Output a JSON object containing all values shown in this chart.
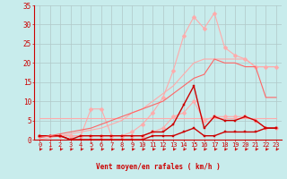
{
  "xlabel": "Vent moyen/en rafales ( km/h )",
  "xlim": [
    -0.5,
    23.5
  ],
  "ylim": [
    0,
    35
  ],
  "yticks": [
    0,
    5,
    10,
    15,
    20,
    25,
    30,
    35
  ],
  "xticks": [
    0,
    1,
    2,
    3,
    4,
    5,
    6,
    7,
    8,
    9,
    10,
    11,
    12,
    13,
    14,
    15,
    16,
    17,
    18,
    19,
    20,
    21,
    22,
    23
  ],
  "bg_color": "#c8ecec",
  "grid_color": "#b0c8c8",
  "series": [
    {
      "name": "flat_light_pink",
      "color": "#ffaaaa",
      "linewidth": 0.8,
      "marker": null,
      "markersize": 0,
      "x": [
        0,
        1,
        2,
        3,
        4,
        5,
        6,
        7,
        8,
        9,
        10,
        11,
        12,
        13,
        14,
        15,
        16,
        17,
        18,
        19,
        20,
        21,
        22,
        23
      ],
      "y": [
        5.5,
        5.5,
        5.5,
        5.5,
        5.5,
        5.5,
        5.5,
        5.5,
        5.5,
        5.5,
        5.5,
        5.5,
        5.5,
        5.5,
        5.5,
        5.5,
        5.5,
        5.5,
        5.5,
        5.5,
        5.5,
        5.5,
        5.5,
        5.5
      ]
    },
    {
      "name": "diagonal_light_upper",
      "color": "#ffaaaa",
      "linewidth": 0.8,
      "marker": null,
      "markersize": 0,
      "x": [
        0,
        1,
        2,
        3,
        4,
        5,
        6,
        7,
        8,
        9,
        10,
        11,
        12,
        13,
        14,
        15,
        16,
        17,
        18,
        19,
        20,
        21,
        22,
        23
      ],
      "y": [
        0,
        0.5,
        1,
        1.5,
        2,
        2.5,
        3,
        4,
        5,
        7,
        8,
        10,
        12,
        14,
        17,
        20,
        21,
        21,
        21,
        21,
        21,
        19,
        19,
        19
      ]
    },
    {
      "name": "rafales_light",
      "color": "#ffaaaa",
      "linewidth": 0.8,
      "marker": "D",
      "markersize": 2.5,
      "x": [
        0,
        1,
        2,
        3,
        4,
        5,
        6,
        7,
        8,
        9,
        10,
        11,
        12,
        13,
        14,
        15,
        16,
        17,
        18,
        19,
        20,
        21,
        22,
        23
      ],
      "y": [
        1,
        1,
        1,
        1,
        1,
        8,
        8,
        1,
        1,
        1,
        1,
        2,
        3,
        6,
        7,
        10,
        5,
        6,
        6,
        6,
        6,
        5,
        3,
        3
      ]
    },
    {
      "name": "big_rafales_light",
      "color": "#ffaaaa",
      "linewidth": 0.8,
      "marker": "D",
      "markersize": 2.5,
      "x": [
        0,
        1,
        2,
        3,
        4,
        5,
        6,
        7,
        8,
        9,
        10,
        11,
        12,
        13,
        14,
        15,
        16,
        17,
        18,
        19,
        20,
        21,
        22,
        23
      ],
      "y": [
        1,
        1,
        1,
        1,
        1,
        1,
        1,
        1,
        1,
        2,
        4,
        7,
        11,
        18,
        27,
        32,
        29,
        33,
        24,
        22,
        21,
        19,
        19,
        19
      ]
    },
    {
      "name": "moyen_dark_bottom",
      "color": "#cc0000",
      "linewidth": 1.0,
      "marker": "s",
      "markersize": 2,
      "x": [
        0,
        1,
        2,
        3,
        4,
        5,
        6,
        7,
        8,
        9,
        10,
        11,
        12,
        13,
        14,
        15,
        16,
        17,
        18,
        19,
        20,
        21,
        22,
        23
      ],
      "y": [
        1,
        1,
        1,
        0,
        0,
        0,
        0,
        0,
        0,
        0,
        0,
        1,
        1,
        1,
        2,
        3,
        1,
        1,
        2,
        2,
        2,
        2,
        3,
        3
      ]
    },
    {
      "name": "moyen_dark_main",
      "color": "#cc0000",
      "linewidth": 1.0,
      "marker": "s",
      "markersize": 2,
      "x": [
        0,
        1,
        2,
        3,
        4,
        5,
        6,
        7,
        8,
        9,
        10,
        11,
        12,
        13,
        14,
        15,
        16,
        17,
        18,
        19,
        20,
        21,
        22,
        23
      ],
      "y": [
        1,
        1,
        1,
        0,
        1,
        1,
        1,
        1,
        1,
        1,
        1,
        2,
        2,
        4,
        9,
        14,
        3,
        6,
        5,
        5,
        6,
        5,
        3,
        3
      ]
    },
    {
      "name": "diagonal_medium",
      "color": "#ff6666",
      "linewidth": 0.8,
      "marker": null,
      "markersize": 0,
      "x": [
        0,
        1,
        2,
        3,
        4,
        5,
        6,
        7,
        8,
        9,
        10,
        11,
        12,
        13,
        14,
        15,
        16,
        17,
        18,
        19,
        20,
        21,
        22,
        23
      ],
      "y": [
        0.5,
        1,
        1.5,
        2,
        2.5,
        3,
        4,
        5,
        6,
        7,
        8,
        9,
        10,
        12,
        14,
        16,
        17,
        21,
        20,
        20,
        19,
        19,
        11,
        11
      ]
    }
  ],
  "text_color": "#cc0000",
  "axis_color": "#cc0000",
  "arrow_color": "#cc0000"
}
